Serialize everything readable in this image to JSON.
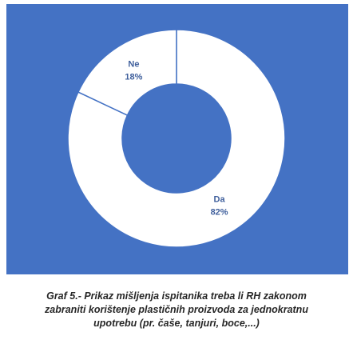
{
  "chart_data": {
    "type": "donut",
    "categories": [
      "Da",
      "Ne"
    ],
    "values": [
      82,
      18
    ],
    "value_labels": [
      "82%",
      "18%"
    ],
    "colors": [
      "#ffffff",
      "#ffffff"
    ],
    "caption": "Graf 5.- Prikaz mišljenja ispitanika treba li RH zakonom zabraniti korištenje plastičnih proizvoda za jednokratnu upotrebu (pr. čaše, tanjuri, boce,...)"
  }
}
